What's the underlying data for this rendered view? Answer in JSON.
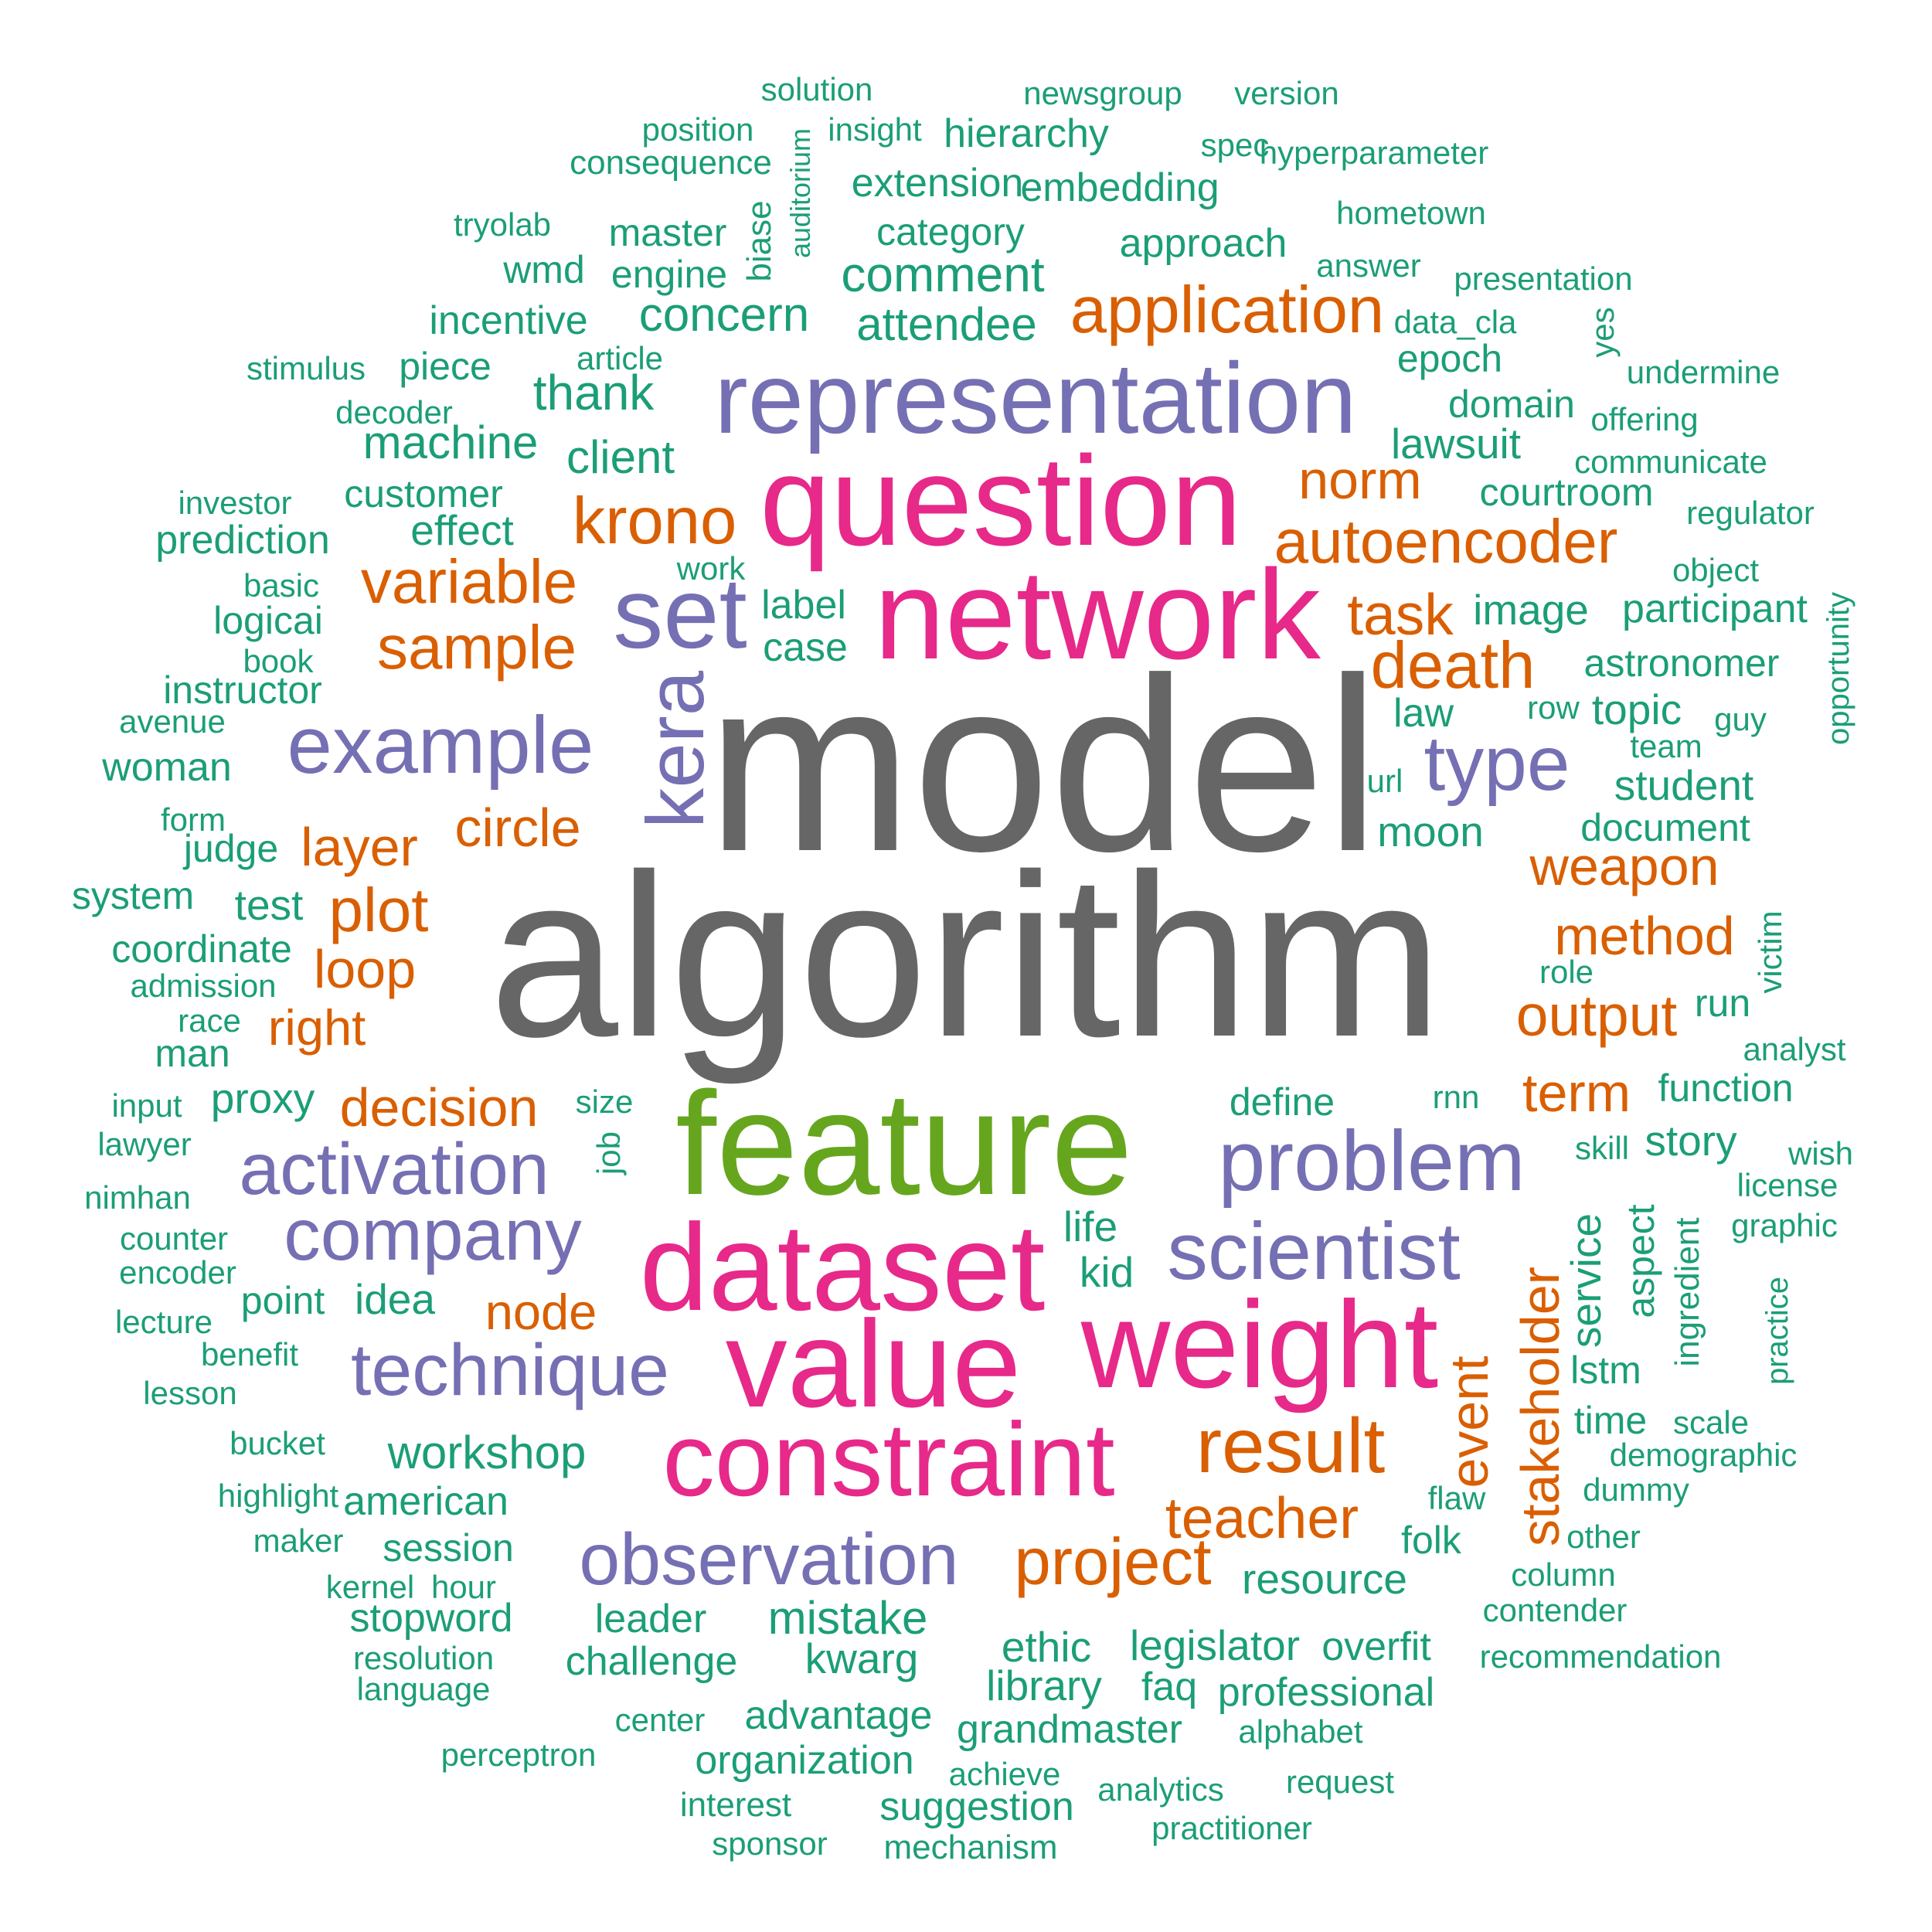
{
  "palette": {
    "gray": "#666666",
    "green": "#66a61e",
    "pink": "#e7298a",
    "purple": "#7570b3",
    "orange": "#d95f02",
    "teal": "#1b9e77"
  },
  "words": [
    {
      "text": "model",
      "color": "gray"
    },
    {
      "text": "algorithm",
      "color": "gray"
    },
    {
      "text": "feature",
      "color": "green"
    },
    {
      "text": "network",
      "color": "pink"
    },
    {
      "text": "question",
      "color": "pink"
    },
    {
      "text": "dataset",
      "color": "pink"
    },
    {
      "text": "value",
      "color": "pink"
    },
    {
      "text": "weight",
      "color": "pink"
    },
    {
      "text": "constraint",
      "color": "pink"
    },
    {
      "text": "representation",
      "color": "purple"
    },
    {
      "text": "set",
      "color": "purple"
    },
    {
      "text": "example",
      "color": "purple"
    },
    {
      "text": "kera",
      "color": "purple"
    },
    {
      "text": "type",
      "color": "purple"
    },
    {
      "text": "problem",
      "color": "purple"
    },
    {
      "text": "scientist",
      "color": "purple"
    },
    {
      "text": "activation",
      "color": "purple"
    },
    {
      "text": "company",
      "color": "purple"
    },
    {
      "text": "technique",
      "color": "purple"
    },
    {
      "text": "observation",
      "color": "purple"
    },
    {
      "text": "application",
      "color": "orange"
    },
    {
      "text": "krono",
      "color": "orange"
    },
    {
      "text": "autoencoder",
      "color": "orange"
    },
    {
      "text": "norm",
      "color": "orange"
    },
    {
      "text": "variable",
      "color": "orange"
    },
    {
      "text": "sample",
      "color": "orange"
    },
    {
      "text": "task",
      "color": "orange"
    },
    {
      "text": "death",
      "color": "orange"
    },
    {
      "text": "circle",
      "color": "orange"
    },
    {
      "text": "layer",
      "color": "orange"
    },
    {
      "text": "plot",
      "color": "orange"
    },
    {
      "text": "loop",
      "color": "orange"
    },
    {
      "text": "right",
      "color": "orange"
    },
    {
      "text": "weapon",
      "color": "orange"
    },
    {
      "text": "method",
      "color": "orange"
    },
    {
      "text": "output",
      "color": "orange"
    },
    {
      "text": "term",
      "color": "orange"
    },
    {
      "text": "decision",
      "color": "orange"
    },
    {
      "text": "node",
      "color": "orange"
    },
    {
      "text": "result",
      "color": "orange"
    },
    {
      "text": "teacher",
      "color": "orange"
    },
    {
      "text": "project",
      "color": "orange"
    },
    {
      "text": "event",
      "color": "orange"
    },
    {
      "text": "stakeholder",
      "color": "orange"
    },
    {
      "text": "solution",
      "color": "teal"
    },
    {
      "text": "newsgroup",
      "color": "teal"
    },
    {
      "text": "version",
      "color": "teal"
    },
    {
      "text": "position",
      "color": "teal"
    },
    {
      "text": "auditorium",
      "color": "teal"
    },
    {
      "text": "insight",
      "color": "teal"
    },
    {
      "text": "hierarchy",
      "color": "teal"
    },
    {
      "text": "spec",
      "color": "teal"
    },
    {
      "text": "hyperparameter",
      "color": "teal"
    },
    {
      "text": "consequence",
      "color": "teal"
    },
    {
      "text": "extension",
      "color": "teal"
    },
    {
      "text": "embedding",
      "color": "teal"
    },
    {
      "text": "biase",
      "color": "teal"
    },
    {
      "text": "tryolab",
      "color": "teal"
    },
    {
      "text": "master",
      "color": "teal"
    },
    {
      "text": "category",
      "color": "teal"
    },
    {
      "text": "hometown",
      "color": "teal"
    },
    {
      "text": "approach",
      "color": "teal"
    },
    {
      "text": "wmd",
      "color": "teal"
    },
    {
      "text": "engine",
      "color": "teal"
    },
    {
      "text": "comment",
      "color": "teal"
    },
    {
      "text": "answer",
      "color": "teal"
    },
    {
      "text": "presentation",
      "color": "teal"
    },
    {
      "text": "incentive",
      "color": "teal"
    },
    {
      "text": "concern",
      "color": "teal"
    },
    {
      "text": "attendee",
      "color": "teal"
    },
    {
      "text": "data_cla",
      "color": "teal"
    },
    {
      "text": "yes",
      "color": "teal"
    },
    {
      "text": "article",
      "color": "teal"
    },
    {
      "text": "stimulus",
      "color": "teal"
    },
    {
      "text": "piece",
      "color": "teal"
    },
    {
      "text": "epoch",
      "color": "teal"
    },
    {
      "text": "undermine",
      "color": "teal"
    },
    {
      "text": "thank",
      "color": "teal"
    },
    {
      "text": "decoder",
      "color": "teal"
    },
    {
      "text": "domain",
      "color": "teal"
    },
    {
      "text": "offering",
      "color": "teal"
    },
    {
      "text": "machine",
      "color": "teal"
    },
    {
      "text": "lawsuit",
      "color": "teal"
    },
    {
      "text": "client",
      "color": "teal"
    },
    {
      "text": "communicate",
      "color": "teal"
    },
    {
      "text": "customer",
      "color": "teal"
    },
    {
      "text": "courtroom",
      "color": "teal"
    },
    {
      "text": "investor",
      "color": "teal"
    },
    {
      "text": "regulator",
      "color": "teal"
    },
    {
      "text": "effect",
      "color": "teal"
    },
    {
      "text": "prediction",
      "color": "teal"
    },
    {
      "text": "basic",
      "color": "teal"
    },
    {
      "text": "work",
      "color": "teal"
    },
    {
      "text": "object",
      "color": "teal"
    },
    {
      "text": "logicai",
      "color": "teal"
    },
    {
      "text": "label",
      "color": "teal"
    },
    {
      "text": "image",
      "color": "teal"
    },
    {
      "text": "participant",
      "color": "teal"
    },
    {
      "text": "book",
      "color": "teal"
    },
    {
      "text": "case",
      "color": "teal"
    },
    {
      "text": "opportunity",
      "color": "teal"
    },
    {
      "text": "astronomer",
      "color": "teal"
    },
    {
      "text": "instructor",
      "color": "teal"
    },
    {
      "text": "avenue",
      "color": "teal"
    },
    {
      "text": "law",
      "color": "teal"
    },
    {
      "text": "row",
      "color": "teal"
    },
    {
      "text": "topic",
      "color": "teal"
    },
    {
      "text": "guy",
      "color": "teal"
    },
    {
      "text": "team",
      "color": "teal"
    },
    {
      "text": "woman",
      "color": "teal"
    },
    {
      "text": "url",
      "color": "teal"
    },
    {
      "text": "student",
      "color": "teal"
    },
    {
      "text": "form",
      "color": "teal"
    },
    {
      "text": "moon",
      "color": "teal"
    },
    {
      "text": "document",
      "color": "teal"
    },
    {
      "text": "judge",
      "color": "teal"
    },
    {
      "text": "system",
      "color": "teal"
    },
    {
      "text": "test",
      "color": "teal"
    },
    {
      "text": "victim",
      "color": "teal"
    },
    {
      "text": "coordinate",
      "color": "teal"
    },
    {
      "text": "role",
      "color": "teal"
    },
    {
      "text": "admission",
      "color": "teal"
    },
    {
      "text": "run",
      "color": "teal"
    },
    {
      "text": "race",
      "color": "teal"
    },
    {
      "text": "man",
      "color": "teal"
    },
    {
      "text": "analyst",
      "color": "teal"
    },
    {
      "text": "define",
      "color": "teal"
    },
    {
      "text": "rnn",
      "color": "teal"
    },
    {
      "text": "function",
      "color": "teal"
    },
    {
      "text": "input",
      "color": "teal"
    },
    {
      "text": "proxy",
      "color": "teal"
    },
    {
      "text": "size",
      "color": "teal"
    },
    {
      "text": "skill",
      "color": "teal"
    },
    {
      "text": "story",
      "color": "teal"
    },
    {
      "text": "wish",
      "color": "teal"
    },
    {
      "text": "lawyer",
      "color": "teal"
    },
    {
      "text": "job",
      "color": "teal"
    },
    {
      "text": "license",
      "color": "teal"
    },
    {
      "text": "nimhan",
      "color": "teal"
    },
    {
      "text": "service",
      "color": "teal"
    },
    {
      "text": "aspect",
      "color": "teal"
    },
    {
      "text": "ingredient",
      "color": "teal"
    },
    {
      "text": "graphic",
      "color": "teal"
    },
    {
      "text": "counter",
      "color": "teal"
    },
    {
      "text": "life",
      "color": "teal"
    },
    {
      "text": "encoder",
      "color": "teal"
    },
    {
      "text": "kid",
      "color": "teal"
    },
    {
      "text": "practice",
      "color": "teal"
    },
    {
      "text": "point",
      "color": "teal"
    },
    {
      "text": "idea",
      "color": "teal"
    },
    {
      "text": "lecture",
      "color": "teal"
    },
    {
      "text": "benefit",
      "color": "teal"
    },
    {
      "text": "lstm",
      "color": "teal"
    },
    {
      "text": "lesson",
      "color": "teal"
    },
    {
      "text": "time",
      "color": "teal"
    },
    {
      "text": "scale",
      "color": "teal"
    },
    {
      "text": "bucket",
      "color": "teal"
    },
    {
      "text": "workshop",
      "color": "teal"
    },
    {
      "text": "demographic",
      "color": "teal"
    },
    {
      "text": "highlight",
      "color": "teal"
    },
    {
      "text": "dummy",
      "color": "teal"
    },
    {
      "text": "american",
      "color": "teal"
    },
    {
      "text": "flaw",
      "color": "teal"
    },
    {
      "text": "maker",
      "color": "teal"
    },
    {
      "text": "folk",
      "color": "teal"
    },
    {
      "text": "other",
      "color": "teal"
    },
    {
      "text": "session",
      "color": "teal"
    },
    {
      "text": "column",
      "color": "teal"
    },
    {
      "text": "kernel",
      "color": "teal"
    },
    {
      "text": "hour",
      "color": "teal"
    },
    {
      "text": "resource",
      "color": "teal"
    },
    {
      "text": "stopword",
      "color": "teal"
    },
    {
      "text": "leader",
      "color": "teal"
    },
    {
      "text": "mistake",
      "color": "teal"
    },
    {
      "text": "contender",
      "color": "teal"
    },
    {
      "text": "resolution",
      "color": "teal"
    },
    {
      "text": "ethic",
      "color": "teal"
    },
    {
      "text": "legislator",
      "color": "teal"
    },
    {
      "text": "overfit",
      "color": "teal"
    },
    {
      "text": "challenge",
      "color": "teal"
    },
    {
      "text": "kwarg",
      "color": "teal"
    },
    {
      "text": "recommendation",
      "color": "teal"
    },
    {
      "text": "language",
      "color": "teal"
    },
    {
      "text": "library",
      "color": "teal"
    },
    {
      "text": "faq",
      "color": "teal"
    },
    {
      "text": "professional",
      "color": "teal"
    },
    {
      "text": "center",
      "color": "teal"
    },
    {
      "text": "advantage",
      "color": "teal"
    },
    {
      "text": "grandmaster",
      "color": "teal"
    },
    {
      "text": "alphabet",
      "color": "teal"
    },
    {
      "text": "perceptron",
      "color": "teal"
    },
    {
      "text": "organization",
      "color": "teal"
    },
    {
      "text": "achieve",
      "color": "teal"
    },
    {
      "text": "analytics",
      "color": "teal"
    },
    {
      "text": "request",
      "color": "teal"
    },
    {
      "text": "interest",
      "color": "teal"
    },
    {
      "text": "suggestion",
      "color": "teal"
    },
    {
      "text": "practitioner",
      "color": "teal"
    },
    {
      "text": "sponsor",
      "color": "teal"
    },
    {
      "text": "mechanism",
      "color": "teal"
    }
  ]
}
